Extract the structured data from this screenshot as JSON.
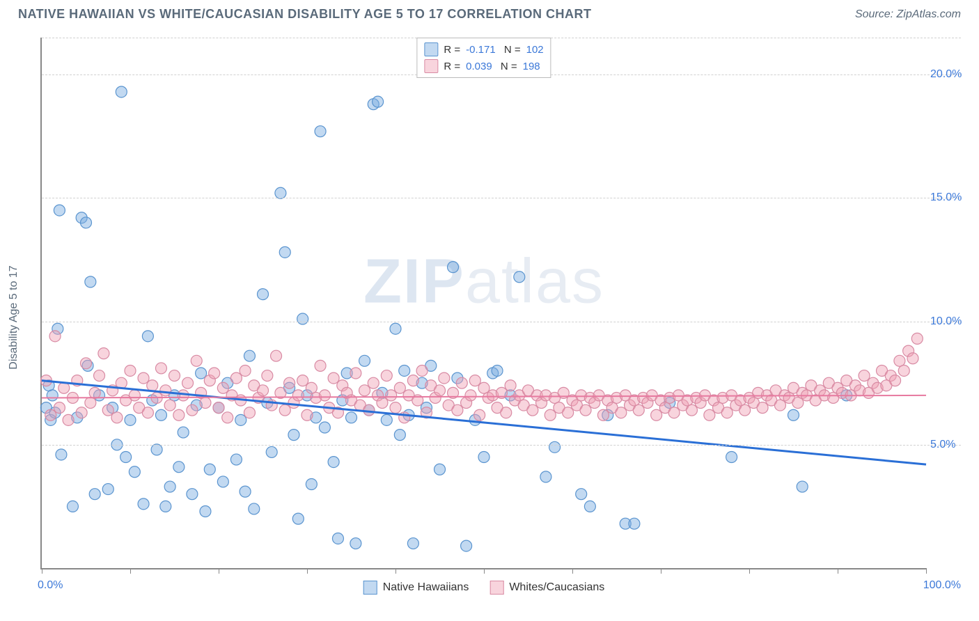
{
  "title": "NATIVE HAWAIIAN VS WHITE/CAUCASIAN DISABILITY AGE 5 TO 17 CORRELATION CHART",
  "source": "Source: ZipAtlas.com",
  "ylabel": "Disability Age 5 to 17",
  "watermark": {
    "bold": "ZIP",
    "rest": "atlas"
  },
  "chart": {
    "type": "scatter",
    "xlim": [
      0,
      100
    ],
    "ylim": [
      0,
      21.5
    ],
    "yticks": [
      5.0,
      10.0,
      15.0,
      20.0
    ],
    "ytick_labels": [
      "5.0%",
      "10.0%",
      "15.0%",
      "20.0%"
    ],
    "xtick_positions": [
      0,
      10,
      20,
      30,
      40,
      50,
      60,
      70,
      80,
      90,
      100
    ],
    "xaxis_left_label": "0.0%",
    "xaxis_right_label": "100.0%",
    "background_color": "#ffffff",
    "grid_color": "#d0d0d0",
    "axis_color": "#888888",
    "marker_radius": 8,
    "series": [
      {
        "name": "Native Hawaiians",
        "fill": "rgba(120,170,225,0.45)",
        "stroke": "#5a94cf",
        "trend": {
          "x1": 0,
          "y1": 7.6,
          "x2": 100,
          "y2": 4.2,
          "color": "#2a6fd6",
          "width": 3
        },
        "R": "-0.171",
        "N": "102",
        "points": [
          [
            0.5,
            6.5
          ],
          [
            0.8,
            7.4
          ],
          [
            1.0,
            6.0
          ],
          [
            1.2,
            7.0
          ],
          [
            1.5,
            6.3
          ],
          [
            1.8,
            9.7
          ],
          [
            2.0,
            14.5
          ],
          [
            2.2,
            4.6
          ],
          [
            3.5,
            2.5
          ],
          [
            4.0,
            6.1
          ],
          [
            4.5,
            14.2
          ],
          [
            5.0,
            14.0
          ],
          [
            5.2,
            8.2
          ],
          [
            5.5,
            11.6
          ],
          [
            6.0,
            3.0
          ],
          [
            6.5,
            7.0
          ],
          [
            7.5,
            3.2
          ],
          [
            8.0,
            6.5
          ],
          [
            8.5,
            5.0
          ],
          [
            9.0,
            19.3
          ],
          [
            9.5,
            4.5
          ],
          [
            10.0,
            6.0
          ],
          [
            10.5,
            3.9
          ],
          [
            11.5,
            2.6
          ],
          [
            12.0,
            9.4
          ],
          [
            12.5,
            6.8
          ],
          [
            13.0,
            4.8
          ],
          [
            13.5,
            6.2
          ],
          [
            14.0,
            2.5
          ],
          [
            14.5,
            3.3
          ],
          [
            15.0,
            7.0
          ],
          [
            15.5,
            4.1
          ],
          [
            16.0,
            5.5
          ],
          [
            17.0,
            3.0
          ],
          [
            17.5,
            6.6
          ],
          [
            18.0,
            7.9
          ],
          [
            18.5,
            2.3
          ],
          [
            19.0,
            4.0
          ],
          [
            20.0,
            6.5
          ],
          [
            20.5,
            3.5
          ],
          [
            21.0,
            7.5
          ],
          [
            22.0,
            4.4
          ],
          [
            22.5,
            6.0
          ],
          [
            23.0,
            3.1
          ],
          [
            23.5,
            8.6
          ],
          [
            24.0,
            2.4
          ],
          [
            25.0,
            11.1
          ],
          [
            25.5,
            6.7
          ],
          [
            26.0,
            4.7
          ],
          [
            27.0,
            15.2
          ],
          [
            27.5,
            12.8
          ],
          [
            28.0,
            7.3
          ],
          [
            28.5,
            5.4
          ],
          [
            29.0,
            2.0
          ],
          [
            29.5,
            10.1
          ],
          [
            30.0,
            7.0
          ],
          [
            30.5,
            3.4
          ],
          [
            31.0,
            6.1
          ],
          [
            31.5,
            17.7
          ],
          [
            32.0,
            5.7
          ],
          [
            33.0,
            4.3
          ],
          [
            33.5,
            1.2
          ],
          [
            34.0,
            6.8
          ],
          [
            34.5,
            7.9
          ],
          [
            35.0,
            6.1
          ],
          [
            35.5,
            1.0
          ],
          [
            36.5,
            8.4
          ],
          [
            37.0,
            6.4
          ],
          [
            37.5,
            18.8
          ],
          [
            38.0,
            18.9
          ],
          [
            38.5,
            7.1
          ],
          [
            39.0,
            6.0
          ],
          [
            40.0,
            9.7
          ],
          [
            40.5,
            5.4
          ],
          [
            41.0,
            8.0
          ],
          [
            41.5,
            6.2
          ],
          [
            42.0,
            1.0
          ],
          [
            43.0,
            7.5
          ],
          [
            43.5,
            6.5
          ],
          [
            44.0,
            8.2
          ],
          [
            45.0,
            4.0
          ],
          [
            46.5,
            12.2
          ],
          [
            47.0,
            7.7
          ],
          [
            48.0,
            0.9
          ],
          [
            49.0,
            6.0
          ],
          [
            50.0,
            4.5
          ],
          [
            51.0,
            7.9
          ],
          [
            51.5,
            8.0
          ],
          [
            53.0,
            7.0
          ],
          [
            54.0,
            11.8
          ],
          [
            57.0,
            3.7
          ],
          [
            58.0,
            4.9
          ],
          [
            61.0,
            3.0
          ],
          [
            62.0,
            2.5
          ],
          [
            64.0,
            6.2
          ],
          [
            66.0,
            1.8
          ],
          [
            67.0,
            1.8
          ],
          [
            71.0,
            6.7
          ],
          [
            78.0,
            4.5
          ],
          [
            85.0,
            6.2
          ],
          [
            86.0,
            3.3
          ],
          [
            91.0,
            7.0
          ]
        ]
      },
      {
        "name": "Whites/Caucasians",
        "fill": "rgba(240,160,180,0.45)",
        "stroke": "#d88aa3",
        "trend": {
          "x1": 0,
          "y1": 6.9,
          "x2": 100,
          "y2": 7.0,
          "color": "#e77aa0",
          "width": 2
        },
        "R": "0.039",
        "N": "198",
        "points": [
          [
            0.5,
            7.6
          ],
          [
            1.0,
            6.2
          ],
          [
            1.5,
            9.4
          ],
          [
            2.0,
            6.5
          ],
          [
            2.5,
            7.3
          ],
          [
            3.0,
            6.0
          ],
          [
            3.5,
            6.9
          ],
          [
            4.0,
            7.6
          ],
          [
            4.5,
            6.3
          ],
          [
            5.0,
            8.3
          ],
          [
            5.5,
            6.7
          ],
          [
            6.0,
            7.1
          ],
          [
            6.5,
            7.8
          ],
          [
            7.0,
            8.7
          ],
          [
            7.5,
            6.4
          ],
          [
            8.0,
            7.2
          ],
          [
            8.5,
            6.1
          ],
          [
            9.0,
            7.5
          ],
          [
            9.5,
            6.8
          ],
          [
            10.0,
            8.0
          ],
          [
            10.5,
            7.0
          ],
          [
            11.0,
            6.5
          ],
          [
            11.5,
            7.7
          ],
          [
            12.0,
            6.3
          ],
          [
            12.5,
            7.4
          ],
          [
            13.0,
            6.9
          ],
          [
            13.5,
            8.1
          ],
          [
            14.0,
            7.2
          ],
          [
            14.5,
            6.6
          ],
          [
            15.0,
            7.8
          ],
          [
            15.5,
            6.2
          ],
          [
            16.0,
            7.0
          ],
          [
            16.5,
            7.5
          ],
          [
            17.0,
            6.4
          ],
          [
            17.5,
            8.4
          ],
          [
            18.0,
            7.1
          ],
          [
            18.5,
            6.7
          ],
          [
            19.0,
            7.6
          ],
          [
            19.5,
            7.9
          ],
          [
            20.0,
            6.5
          ],
          [
            20.5,
            7.3
          ],
          [
            21.0,
            6.1
          ],
          [
            21.5,
            7.0
          ],
          [
            22.0,
            7.7
          ],
          [
            22.5,
            6.8
          ],
          [
            23.0,
            8.0
          ],
          [
            23.5,
            6.3
          ],
          [
            24.0,
            7.4
          ],
          [
            24.5,
            6.9
          ],
          [
            25.0,
            7.2
          ],
          [
            25.5,
            7.8
          ],
          [
            26.0,
            6.6
          ],
          [
            26.5,
            8.6
          ],
          [
            27.0,
            7.1
          ],
          [
            27.5,
            6.4
          ],
          [
            28.0,
            7.5
          ],
          [
            28.5,
            6.7
          ],
          [
            29.0,
            7.0
          ],
          [
            29.5,
            7.6
          ],
          [
            30.0,
            6.2
          ],
          [
            30.5,
            7.3
          ],
          [
            31.0,
            6.9
          ],
          [
            31.5,
            8.2
          ],
          [
            32.0,
            7.0
          ],
          [
            32.5,
            6.5
          ],
          [
            33.0,
            7.7
          ],
          [
            33.5,
            6.3
          ],
          [
            34.0,
            7.4
          ],
          [
            34.5,
            7.1
          ],
          [
            35.0,
            6.8
          ],
          [
            35.5,
            7.9
          ],
          [
            36.0,
            6.6
          ],
          [
            36.5,
            7.2
          ],
          [
            37.0,
            6.4
          ],
          [
            37.5,
            7.5
          ],
          [
            38.0,
            7.0
          ],
          [
            38.5,
            6.7
          ],
          [
            39.0,
            7.8
          ],
          [
            39.5,
            7.0
          ],
          [
            40.0,
            6.5
          ],
          [
            40.5,
            7.3
          ],
          [
            41.0,
            6.1
          ],
          [
            41.5,
            7.0
          ],
          [
            42.0,
            7.6
          ],
          [
            42.5,
            6.8
          ],
          [
            43.0,
            8.0
          ],
          [
            43.5,
            6.3
          ],
          [
            44.0,
            7.4
          ],
          [
            44.5,
            6.9
          ],
          [
            45.0,
            7.2
          ],
          [
            45.5,
            7.7
          ],
          [
            46.0,
            6.6
          ],
          [
            46.5,
            7.1
          ],
          [
            47.0,
            6.4
          ],
          [
            47.5,
            7.5
          ],
          [
            48.0,
            6.7
          ],
          [
            48.5,
            7.0
          ],
          [
            49.0,
            7.6
          ],
          [
            49.5,
            6.2
          ],
          [
            50.0,
            7.3
          ],
          [
            50.5,
            6.9
          ],
          [
            51.0,
            7.0
          ],
          [
            51.5,
            6.5
          ],
          [
            52.0,
            7.1
          ],
          [
            52.5,
            6.3
          ],
          [
            53.0,
            7.4
          ],
          [
            53.5,
            6.8
          ],
          [
            54.0,
            7.0
          ],
          [
            54.5,
            6.6
          ],
          [
            55.0,
            7.2
          ],
          [
            55.5,
            6.4
          ],
          [
            56.0,
            7.0
          ],
          [
            56.5,
            6.7
          ],
          [
            57.0,
            7.0
          ],
          [
            57.5,
            6.2
          ],
          [
            58.0,
            6.9
          ],
          [
            58.5,
            6.5
          ],
          [
            59.0,
            7.1
          ],
          [
            59.5,
            6.3
          ],
          [
            60.0,
            6.8
          ],
          [
            60.5,
            6.6
          ],
          [
            61.0,
            7.0
          ],
          [
            61.5,
            6.4
          ],
          [
            62.0,
            6.9
          ],
          [
            62.5,
            6.7
          ],
          [
            63.0,
            7.0
          ],
          [
            63.5,
            6.2
          ],
          [
            64.0,
            6.8
          ],
          [
            64.5,
            6.5
          ],
          [
            65.0,
            6.9
          ],
          [
            65.5,
            6.3
          ],
          [
            66.0,
            7.0
          ],
          [
            66.5,
            6.6
          ],
          [
            67.0,
            6.8
          ],
          [
            67.5,
            6.4
          ],
          [
            68.0,
            6.9
          ],
          [
            68.5,
            6.7
          ],
          [
            69.0,
            7.0
          ],
          [
            69.5,
            6.2
          ],
          [
            70.0,
            6.8
          ],
          [
            70.5,
            6.5
          ],
          [
            71.0,
            6.9
          ],
          [
            71.5,
            6.3
          ],
          [
            72.0,
            7.0
          ],
          [
            72.5,
            6.6
          ],
          [
            73.0,
            6.8
          ],
          [
            73.5,
            6.4
          ],
          [
            74.0,
            6.9
          ],
          [
            74.5,
            6.7
          ],
          [
            75.0,
            7.0
          ],
          [
            75.5,
            6.2
          ],
          [
            76.0,
            6.8
          ],
          [
            76.5,
            6.5
          ],
          [
            77.0,
            6.9
          ],
          [
            77.5,
            6.3
          ],
          [
            78.0,
            7.0
          ],
          [
            78.5,
            6.6
          ],
          [
            79.0,
            6.8
          ],
          [
            79.5,
            6.4
          ],
          [
            80.0,
            6.9
          ],
          [
            80.5,
            6.7
          ],
          [
            81.0,
            7.1
          ],
          [
            81.5,
            6.5
          ],
          [
            82.0,
            7.0
          ],
          [
            82.5,
            6.8
          ],
          [
            83.0,
            7.2
          ],
          [
            83.5,
            6.6
          ],
          [
            84.0,
            7.0
          ],
          [
            84.5,
            6.9
          ],
          [
            85.0,
            7.3
          ],
          [
            85.5,
            6.7
          ],
          [
            86.0,
            7.1
          ],
          [
            86.5,
            7.0
          ],
          [
            87.0,
            7.4
          ],
          [
            87.5,
            6.8
          ],
          [
            88.0,
            7.2
          ],
          [
            88.5,
            7.0
          ],
          [
            89.0,
            7.5
          ],
          [
            89.5,
            6.9
          ],
          [
            90.0,
            7.3
          ],
          [
            90.5,
            7.1
          ],
          [
            91.0,
            7.6
          ],
          [
            91.5,
            7.0
          ],
          [
            92.0,
            7.4
          ],
          [
            92.5,
            7.2
          ],
          [
            93.0,
            7.8
          ],
          [
            93.5,
            7.1
          ],
          [
            94.0,
            7.5
          ],
          [
            94.5,
            7.3
          ],
          [
            95.0,
            8.0
          ],
          [
            95.5,
            7.4
          ],
          [
            96.0,
            7.8
          ],
          [
            96.5,
            7.6
          ],
          [
            97.0,
            8.4
          ],
          [
            97.5,
            8.0
          ],
          [
            98.0,
            8.8
          ],
          [
            98.5,
            8.5
          ],
          [
            99.0,
            9.3
          ]
        ]
      }
    ]
  }
}
